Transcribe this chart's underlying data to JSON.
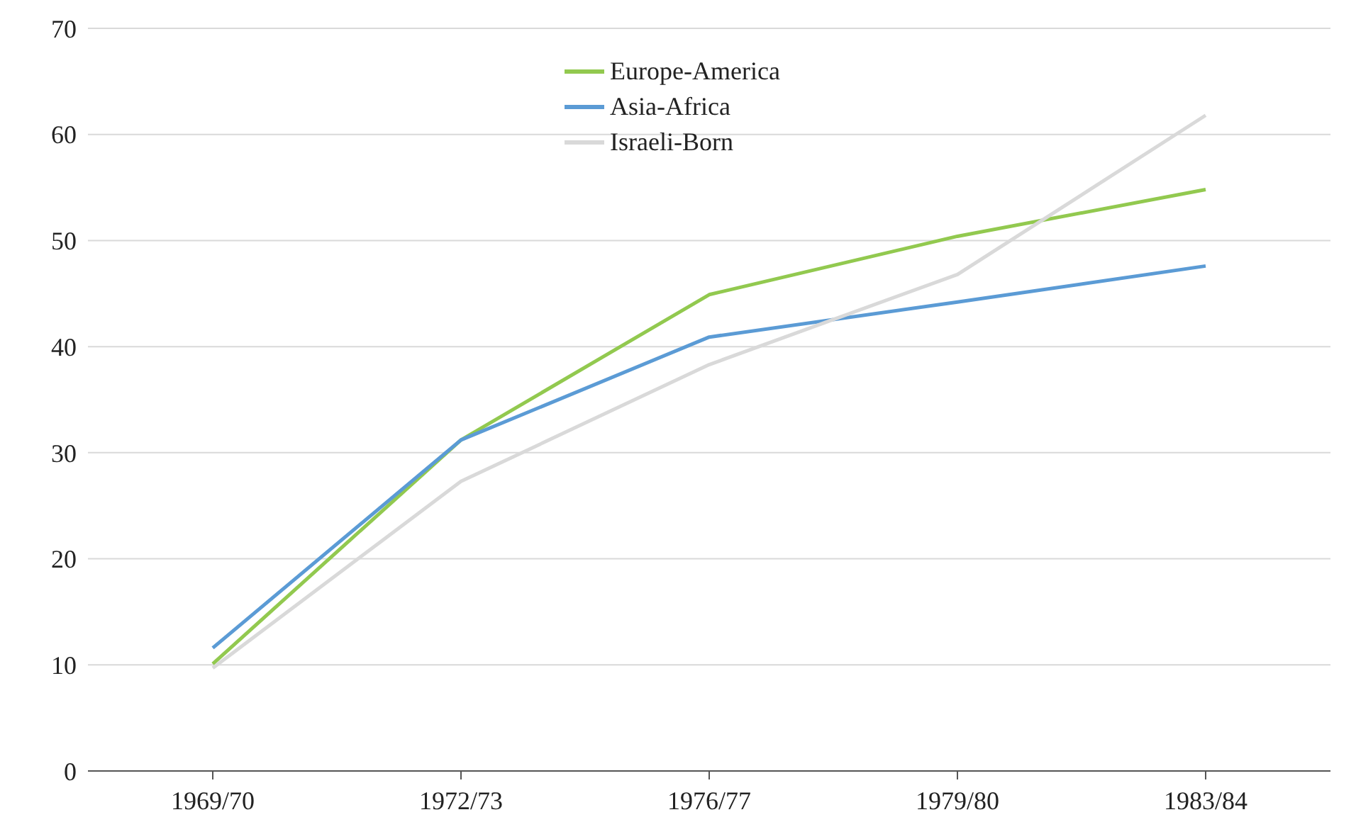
{
  "chart_data": {
    "type": "line",
    "categories": [
      "1969/70",
      "1972/73",
      "1976/77",
      "1979/80",
      "1983/84"
    ],
    "series": [
      {
        "name": "Europe-America",
        "color": "#92c94f",
        "values": [
          10.1,
          31.2,
          44.9,
          50.4,
          54.8
        ]
      },
      {
        "name": "Asia-Africa",
        "color": "#5b9bd5",
        "values": [
          11.6,
          31.2,
          40.9,
          44.2,
          47.6
        ]
      },
      {
        "name": "Israeli-Born",
        "color": "#d9d9d9",
        "values": [
          9.7,
          27.3,
          38.3,
          46.8,
          61.8
        ]
      }
    ],
    "ylim": [
      0,
      70
    ],
    "yticks": [
      0,
      10,
      20,
      30,
      40,
      50,
      60,
      70
    ],
    "grid": "y",
    "legend": "top",
    "marker": "none",
    "line_style": "solid"
  }
}
